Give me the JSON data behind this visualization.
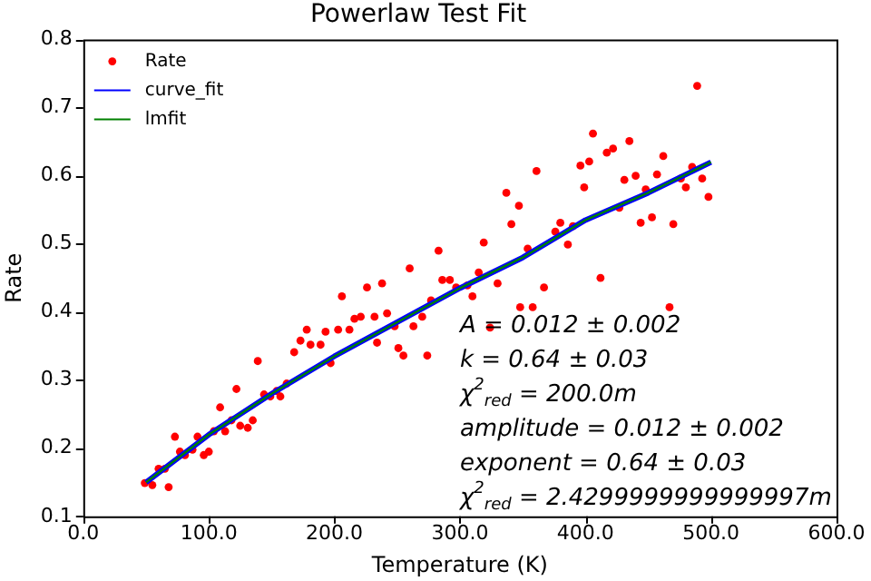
{
  "chart_data": {
    "type": "scatter",
    "title": "Powerlaw Test Fit",
    "xlabel": "Temperature (K)",
    "ylabel": "Rate",
    "xlim": [
      0,
      600
    ],
    "xticks": [
      {
        "value": 0,
        "label": "0.0"
      },
      {
        "value": 100,
        "label": "100.0"
      },
      {
        "value": 200,
        "label": "200.0"
      },
      {
        "value": 300,
        "label": "300.0"
      },
      {
        "value": 400,
        "label": "400.0"
      },
      {
        "value": 500,
        "label": "500.0"
      },
      {
        "value": 600,
        "label": "600.0"
      }
    ],
    "ylim": [
      0.1,
      0.8
    ],
    "yticks": [
      0.1,
      0.2,
      0.3,
      0.4,
      0.5,
      0.6,
      0.7,
      0.8
    ],
    "grid": false,
    "legend": "top left",
    "marker": "circle",
    "series": [
      {
        "name": "Rate",
        "color": "#ff0000",
        "x": [
          49,
          55,
          60,
          65,
          68,
          73,
          77,
          81,
          87,
          91,
          96,
          100,
          104,
          109,
          113,
          118,
          122,
          125,
          131,
          135,
          139,
          144,
          149,
          154,
          157,
          162,
          168,
          173,
          178,
          181,
          189,
          193,
          197,
          203,
          206,
          212,
          216,
          221,
          226,
          232,
          234,
          238,
          242,
          248,
          251,
          255,
          260,
          263,
          270,
          274,
          277,
          283,
          286,
          292,
          297,
          306,
          310,
          315,
          319,
          324,
          330,
          337,
          341,
          347,
          348,
          354,
          358,
          361,
          367,
          376,
          380,
          386,
          390,
          396,
          399,
          403,
          406,
          412,
          417,
          422,
          427,
          431,
          435,
          440,
          444,
          448,
          453,
          457,
          462,
          467,
          470,
          476,
          480,
          485,
          489,
          493,
          498
        ],
        "values": [
          0.149,
          0.146,
          0.17,
          0.17,
          0.143,
          0.217,
          0.195,
          0.19,
          0.198,
          0.217,
          0.19,
          0.195,
          0.225,
          0.26,
          0.225,
          0.241,
          0.287,
          0.233,
          0.23,
          0.241,
          0.328,
          0.279,
          0.276,
          0.284,
          0.276,
          0.295,
          0.341,
          0.358,
          0.374,
          0.352,
          0.352,
          0.371,
          0.325,
          0.374,
          0.423,
          0.374,
          0.39,
          0.393,
          0.436,
          0.393,
          0.355,
          0.442,
          0.398,
          0.379,
          0.347,
          0.336,
          0.464,
          0.379,
          0.393,
          0.336,
          0.417,
          0.49,
          0.447,
          0.447,
          0.436,
          0.439,
          0.423,
          0.458,
          0.502,
          0.377,
          0.442,
          0.575,
          0.529,
          0.556,
          0.407,
          0.493,
          0.407,
          0.607,
          0.436,
          0.518,
          0.531,
          0.499,
          0.526,
          0.615,
          0.583,
          0.621,
          0.662,
          0.45,
          0.634,
          0.64,
          0.553,
          0.594,
          0.651,
          0.6,
          0.531,
          0.58,
          0.539,
          0.602,
          0.629,
          0.407,
          0.529,
          0.596,
          0.583,
          0.613,
          0.732,
          0.596,
          0.569
        ]
      },
      {
        "name": "curve_fit",
        "type": "line",
        "marker": "none",
        "color": "#0000ff",
        "x": [
          50,
          100,
          150,
          200,
          250,
          300,
          350,
          400,
          450,
          500
        ],
        "values": [
          0.15,
          0.22,
          0.28,
          0.335,
          0.385,
          0.435,
          0.48,
          0.535,
          0.575,
          0.62
        ]
      },
      {
        "name": "lmfit",
        "type": "line",
        "marker": "none",
        "color": "#008000",
        "x": [
          50,
          100,
          150,
          200,
          250,
          300,
          350,
          400,
          450,
          500
        ],
        "values": [
          0.15,
          0.22,
          0.28,
          0.335,
          0.385,
          0.435,
          0.48,
          0.535,
          0.575,
          0.62
        ]
      }
    ],
    "annotations": [
      "A = 0.012 ± 0.002",
      "k = 0.64 ± 0.03",
      "χ$^{2}$$_{red}$ = 200.0m",
      "amplitude = 0.012 ± 0.002",
      "exponent = 0.64 ± 0.03",
      "χ$^{2}$$_{red}$ = 2.4299999999999997m"
    ]
  }
}
